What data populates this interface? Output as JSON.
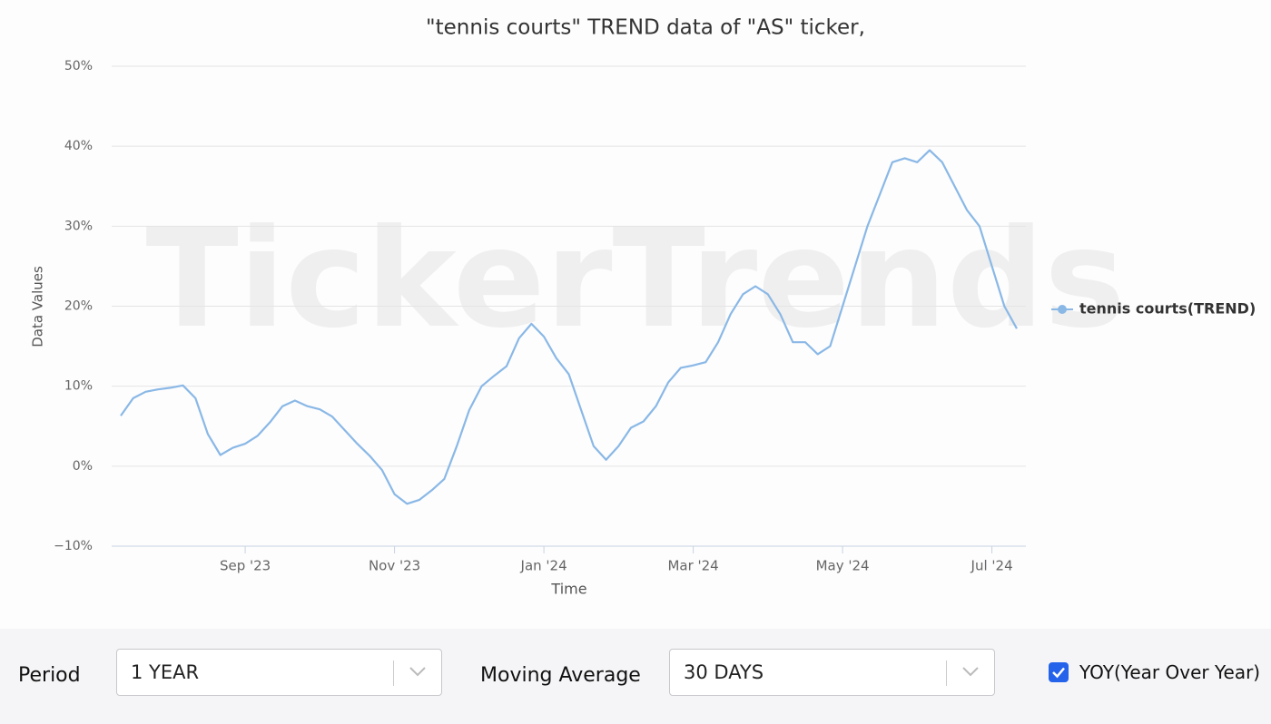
{
  "chart_data": {
    "type": "line",
    "title": "\"tennis courts\" TREND data of \"AS\" ticker,",
    "watermark": "TickerTrends",
    "x_label": "Time",
    "y_label": "Data Values",
    "categories": [
      null,
      null,
      null,
      null,
      null,
      null,
      null,
      null,
      null,
      null,
      "Sep '23",
      null,
      null,
      null,
      null,
      null,
      null,
      null,
      null,
      null,
      null,
      null,
      "Nov '23",
      null,
      null,
      null,
      null,
      null,
      null,
      null,
      null,
      null,
      null,
      null,
      "Jan '24",
      null,
      null,
      null,
      null,
      null,
      null,
      null,
      null,
      null,
      null,
      null,
      "Mar '24",
      null,
      null,
      null,
      null,
      null,
      null,
      null,
      null,
      null,
      null,
      null,
      "May '24",
      null,
      null,
      null,
      null,
      null,
      null,
      null,
      null,
      null,
      null,
      null,
      "Jul '24",
      null,
      null
    ],
    "series": [
      {
        "name": "tennis courts(TREND)",
        "color": "#8ab8e6",
        "values": [
          6.3,
          8.5,
          9.3,
          9.6,
          9.8,
          10.1,
          8.5,
          4,
          1.4,
          2.3,
          2.8,
          3.8,
          5.5,
          7.5,
          8.2,
          7.5,
          7.1,
          6.2,
          4.5,
          2.8,
          1.3,
          -0.5,
          -3.5,
          -4.7,
          -4.2,
          -3,
          -1.6,
          2.5,
          7,
          10,
          11.3,
          12.5,
          16,
          17.8,
          16.2,
          13.5,
          11.5,
          7,
          2.5,
          0.8,
          2.5,
          4.8,
          5.6,
          7.5,
          10.5,
          12.3,
          12.6,
          13,
          15.5,
          19,
          21.5,
          22.5,
          21.5,
          19,
          15.5,
          15.5,
          14,
          15,
          20,
          25,
          30,
          34,
          38,
          38.5,
          38,
          39.5,
          38,
          35,
          32,
          30,
          25,
          20,
          17.2
        ]
      }
    ],
    "ylim": [
      -10,
      50
    ],
    "yticks": [
      {
        "value": -10,
        "label": "−10%"
      },
      {
        "value": 0,
        "label": "0%"
      },
      {
        "value": 10,
        "label": "10%"
      },
      {
        "value": 20,
        "label": "20%"
      },
      {
        "value": 30,
        "label": "30%"
      },
      {
        "value": 40,
        "label": "40%"
      },
      {
        "value": 50,
        "label": "50%"
      }
    ],
    "grid": true,
    "legend": "right"
  },
  "controls": {
    "period_label": "Period",
    "period_value": "1 YEAR",
    "ma_label": "Moving Average",
    "ma_value": "30 DAYS",
    "yoy_label": "YOY(Year Over Year)",
    "yoy_checked": true
  }
}
